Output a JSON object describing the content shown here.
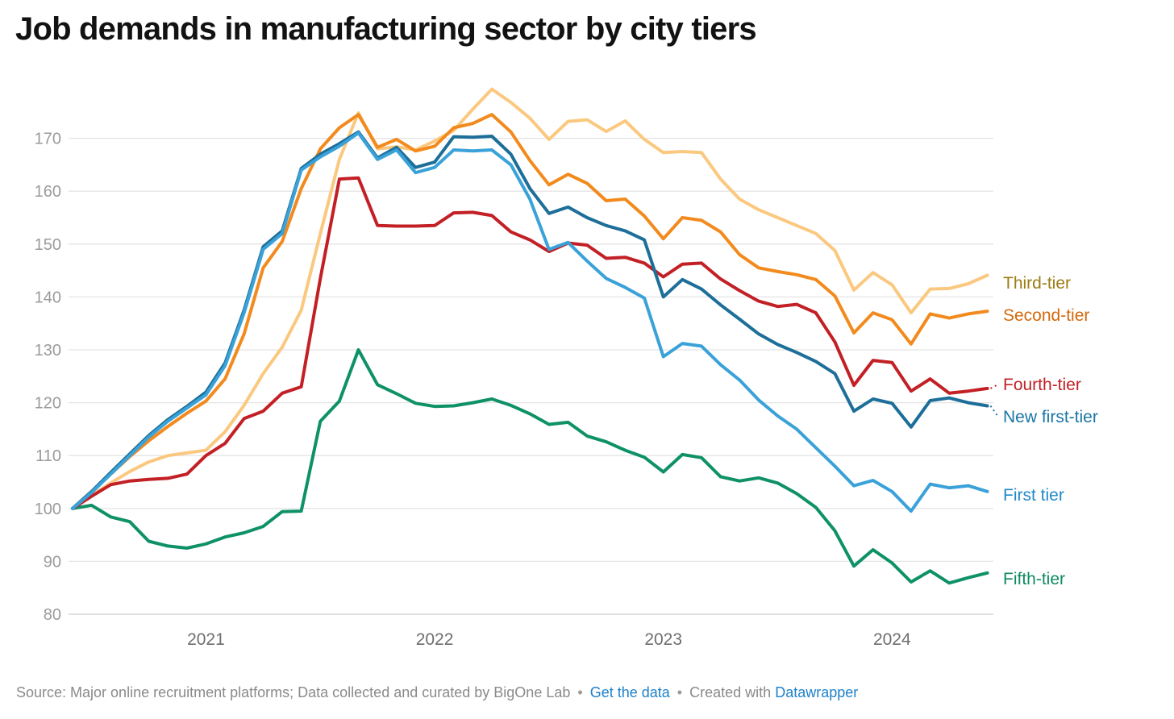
{
  "title": "Job demands in manufacturing sector by city tiers",
  "footer": {
    "source_text": "Source: Major online recruitment platforms; Data collected and curated by BigOne Lab",
    "separator": "•",
    "get_data_label": "Get the data",
    "created_with_label": "Created with",
    "tool_label": "Datawrapper",
    "link_color": "#1d81c9",
    "text_color": "#8a8a8a"
  },
  "chart_data": {
    "type": "line",
    "title": "Job demands in manufacturing sector by city tiers",
    "x_unit": "month",
    "x": [
      "2020-06",
      "2020-07",
      "2020-08",
      "2020-09",
      "2020-10",
      "2020-11",
      "2020-12",
      "2021-01",
      "2021-02",
      "2021-03",
      "2021-04",
      "2021-05",
      "2021-06",
      "2021-07",
      "2021-08",
      "2021-09",
      "2021-10",
      "2021-11",
      "2021-12",
      "2022-01",
      "2022-02",
      "2022-03",
      "2022-04",
      "2022-05",
      "2022-06",
      "2022-07",
      "2022-08",
      "2022-09",
      "2022-10",
      "2022-11",
      "2022-12",
      "2023-01",
      "2023-02",
      "2023-03",
      "2023-04",
      "2023-05",
      "2023-06",
      "2023-07",
      "2023-08",
      "2023-09",
      "2023-10",
      "2023-11",
      "2023-12",
      "2024-01",
      "2024-02",
      "2024-03",
      "2024-04",
      "2024-05",
      "2024-06"
    ],
    "x_tick_labels": [
      "2021",
      "2022",
      "2023",
      "2024"
    ],
    "y_ticks": [
      80,
      90,
      100,
      110,
      120,
      130,
      140,
      150,
      160,
      170
    ],
    "ylim": [
      78,
      181
    ],
    "grid": true,
    "legend_position": "right-direct-labels",
    "baseline_value": 100,
    "series": [
      {
        "name": "Third-tier",
        "color": "#fbc87f",
        "label_color": "#9c7c14",
        "connector": false,
        "values": [
          100,
          102.5,
          104.8,
          107,
          108.8,
          110,
          110.5,
          111,
          114.5,
          119.5,
          125.5,
          130.5,
          137.5,
          152,
          166,
          174.8,
          168,
          168.4,
          167.8,
          169.5,
          171.5,
          175.5,
          179.3,
          176.8,
          173.8,
          169.8,
          173.2,
          173.5,
          171.3,
          173.3,
          169.8,
          167.3,
          167.5,
          167.3,
          162.3,
          158.5,
          156.5,
          155,
          153.5,
          152,
          148.8,
          141.3,
          144.6,
          142.3,
          137,
          141.5,
          141.6,
          142.5,
          144.1
        ]
      },
      {
        "name": "Second-tier",
        "color": "#f28a1d",
        "label_color": "#d4690b",
        "connector": false,
        "values": [
          100,
          103.2,
          106.5,
          109.8,
          112.8,
          115.5,
          118,
          120.3,
          124.5,
          133,
          145.5,
          150.5,
          160.5,
          168,
          172,
          174.5,
          168.3,
          169.8,
          167.6,
          168.5,
          172,
          172.8,
          174.5,
          171.2,
          165.8,
          161.2,
          163.2,
          161.5,
          158.2,
          158.5,
          155.3,
          151,
          155,
          154.5,
          152.3,
          148,
          145.5,
          144.8,
          144.2,
          143.3,
          140.2,
          133.2,
          137,
          135.7,
          131.1,
          136.8,
          136,
          136.8,
          137.3
        ]
      },
      {
        "name": "Fifth-tier",
        "color": "#0f9168",
        "label_color": "#0e8a62",
        "connector": false,
        "values": [
          100,
          100.6,
          98.4,
          97.5,
          93.8,
          92.9,
          92.5,
          93.3,
          94.6,
          95.4,
          96.6,
          99.4,
          99.5,
          116.5,
          120.3,
          130,
          123.4,
          121.7,
          119.9,
          119.3,
          119.4,
          120,
          120.7,
          119.5,
          117.9,
          115.9,
          116.3,
          113.7,
          112.6,
          111,
          109.7,
          106.9,
          110.2,
          109.6,
          106,
          105.2,
          105.8,
          104.8,
          102.8,
          100.2,
          95.8,
          89.1,
          92.2,
          89.7,
          86.1,
          88.2,
          85.9,
          86.9,
          87.8
        ]
      },
      {
        "name": "Fourth-tier",
        "color": "#c32026",
        "label_color": "#c32026",
        "connector": true,
        "values": [
          100,
          102.3,
          104.5,
          105.2,
          105.5,
          105.7,
          106.5,
          110,
          112.3,
          117,
          118.4,
          121.8,
          123,
          143.5,
          162.3,
          162.5,
          153.5,
          153.4,
          153.4,
          153.5,
          155.9,
          156,
          155.4,
          152.3,
          150.8,
          148.6,
          150.2,
          149.8,
          147.3,
          147.5,
          146.4,
          143.8,
          146.2,
          146.4,
          143.4,
          141.2,
          139.2,
          138.2,
          138.6,
          137,
          131.5,
          123.3,
          128,
          127.6,
          122.2,
          124.5,
          121.8,
          122.2,
          122.7
        ]
      },
      {
        "name": "New first-tier",
        "color": "#1d6f99",
        "label_color": "#1a76a5",
        "connector": true,
        "values": [
          100,
          103.2,
          106.8,
          110.3,
          113.8,
          116.8,
          119.3,
          122,
          127.5,
          137.5,
          149.5,
          152.5,
          164.3,
          167,
          169,
          171.2,
          166.3,
          168.3,
          164.5,
          165.5,
          170.3,
          170.2,
          170.4,
          167,
          160.5,
          155.8,
          157,
          155,
          153.5,
          152.5,
          150.8,
          140,
          143.3,
          141.5,
          138.5,
          135.8,
          133,
          131,
          129.5,
          127.8,
          125.5,
          118.4,
          120.7,
          119.9,
          115.4,
          120.4,
          120.9,
          120,
          119.4
        ]
      },
      {
        "name": "First tier",
        "color": "#3aa2d8",
        "label_color": "#2189cb",
        "connector": false,
        "values": [
          100,
          103,
          106.5,
          110,
          113.5,
          116.5,
          119,
          121.5,
          127,
          137,
          149,
          152,
          164,
          166.5,
          168.5,
          171,
          166,
          167.8,
          163.5,
          164.5,
          167.8,
          167.6,
          167.8,
          165,
          158.5,
          149,
          150.3,
          146.8,
          143.5,
          141.8,
          139.8,
          128.7,
          131.2,
          130.7,
          127.2,
          124.3,
          120.5,
          117.5,
          115,
          111.5,
          108,
          104.3,
          105.3,
          103.2,
          99.5,
          104.6,
          103.9,
          104.3,
          103.2
        ]
      }
    ]
  }
}
